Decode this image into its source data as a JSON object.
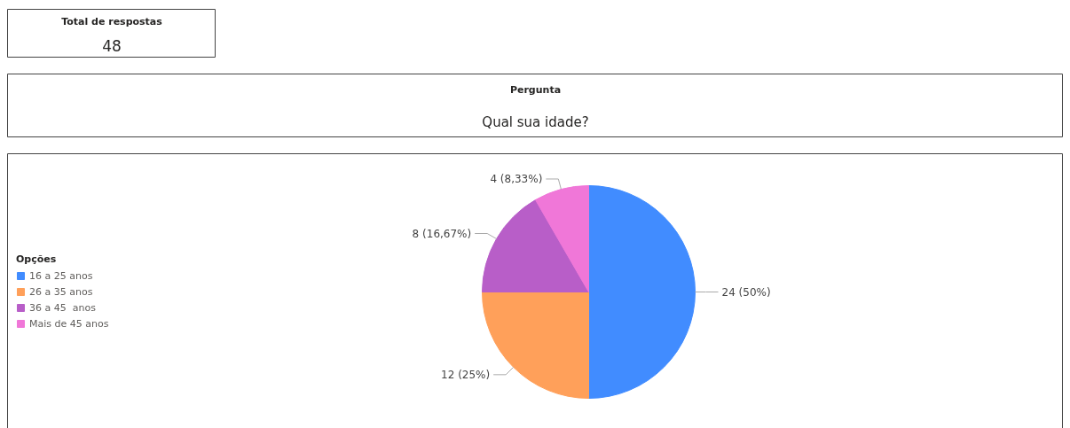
{
  "chart_data": [
    {
      "type": "other",
      "title": "Total de respostas",
      "annotations": [
        "48"
      ]
    },
    {
      "type": "other",
      "title": "Pergunta",
      "subtitle": "Qual sua idade?"
    },
    {
      "type": "pie",
      "legend_title": "Opções",
      "legend": "left",
      "categories": [
        "16 a 25 anos",
        "26 a 35 anos",
        "36 a 45  anos",
        "Mais de 45 anos"
      ],
      "values": [
        24,
        12,
        8,
        4
      ],
      "colors": [
        "#418cff",
        "#ffa05a",
        "#b85ec8",
        "#f077d8"
      ],
      "value_labels": [
        "24 (50%)",
        "12 (25%)",
        "8 (16,67%)",
        "4 (8,33%)"
      ]
    }
  ]
}
